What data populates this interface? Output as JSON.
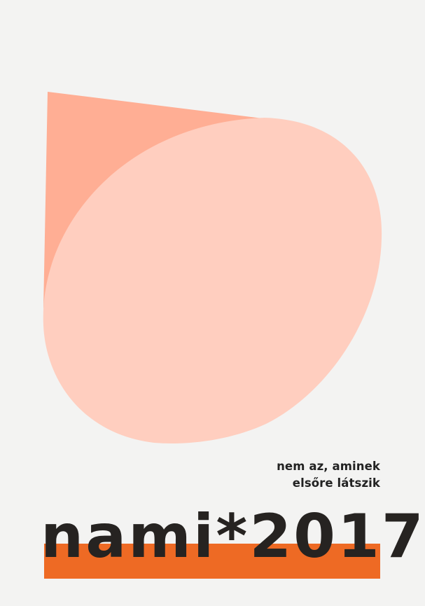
{
  "poster": {
    "tagline_line1": "nem az, aminek",
    "tagline_line2": "elsőre látszik",
    "brand": "nami*2017"
  },
  "colors": {
    "background": "#f3f3f2",
    "triangle": "#ffae94",
    "blob": "#ffcebf",
    "accent_bar": "#ee6a24",
    "text": "#262321"
  }
}
